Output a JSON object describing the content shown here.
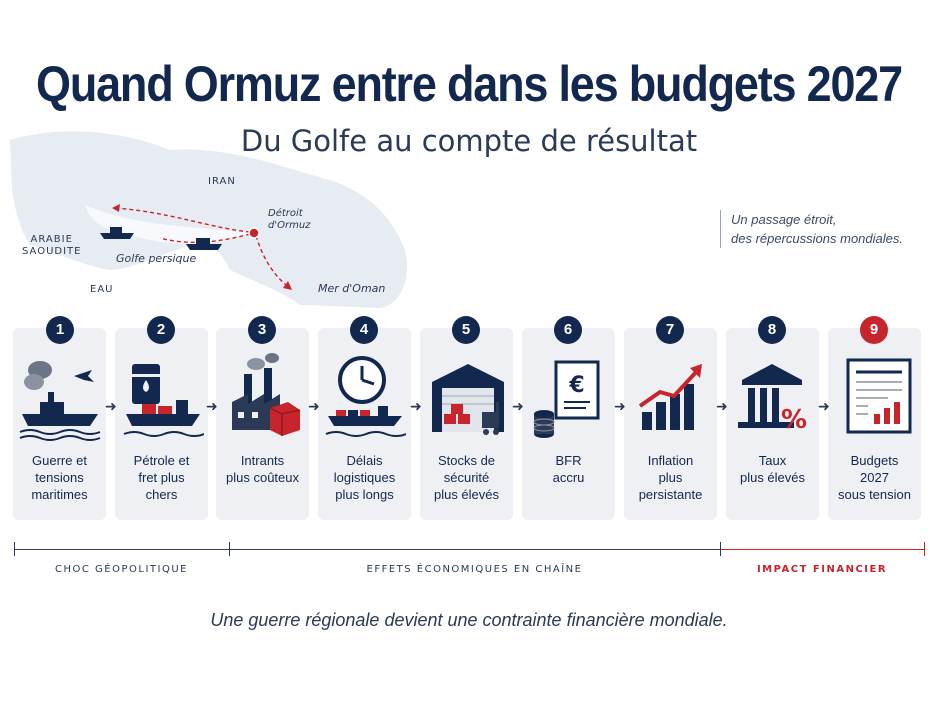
{
  "header": {
    "title": "Quand Ormuz entre dans les budgets 2027",
    "subtitle": "Du Golfe au compte de résultat"
  },
  "map": {
    "labels": {
      "iran": "IRAN",
      "arabie": "ARABIE\nSAOUDITE",
      "eau": "EAU",
      "golfe": "Golfe persique",
      "detroit": "Détroit\nd'Ormuz",
      "oman": "Mer d'Oman"
    },
    "tagline": "Un passage étroit,\ndes répercussions mondiales."
  },
  "steps": [
    {
      "number": "1",
      "label": "Guerre et\ntensions\nmaritimes",
      "icon": "warship-icon"
    },
    {
      "number": "2",
      "label": "Pétrole et\nfret plus\nchers",
      "icon": "oil-tanker-icon"
    },
    {
      "number": "3",
      "label": "Intrants\nplus coûteux",
      "icon": "factory-icon"
    },
    {
      "number": "4",
      "label": "Délais\nlogistiques\nplus longs",
      "icon": "clock-ship-icon"
    },
    {
      "number": "5",
      "label": "Stocks de\nsécurité\nplus élevés",
      "icon": "warehouse-icon"
    },
    {
      "number": "6",
      "label": "BFR\naccru",
      "icon": "euro-document-icon"
    },
    {
      "number": "7",
      "label": "Inflation\nplus\npersistante",
      "icon": "rising-chart-icon"
    },
    {
      "number": "8",
      "label": "Taux\nplus élevés",
      "icon": "bank-percent-icon"
    },
    {
      "number": "9",
      "label": "Budgets\n2027\nsous tension",
      "icon": "budget-sheet-icon"
    }
  ],
  "phases": {
    "choc": "CHOC GÉOPOLITIQUE",
    "effets": "EFFETS ÉCONOMIQUES EN CHAÎNE",
    "impact": "IMPACT FINANCIER"
  },
  "footer": "Une guerre régionale devient une contrainte financière mondiale.",
  "colors": {
    "navy": "#13284e",
    "red": "#c8242c",
    "card": "#eef0f4"
  }
}
